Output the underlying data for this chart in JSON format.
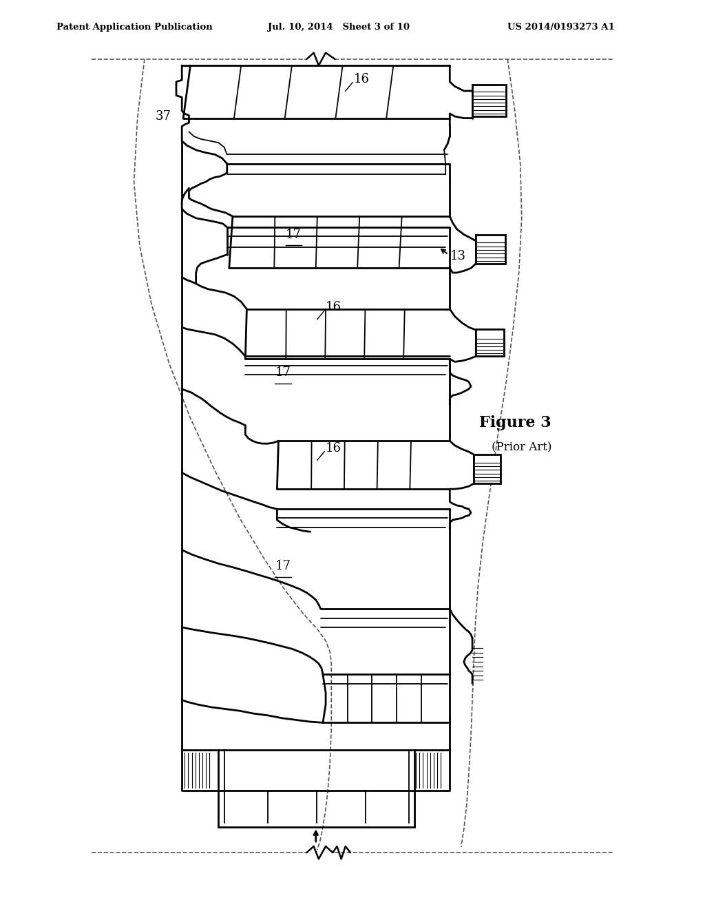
{
  "title_line1": "Patent Application Publication",
  "title_line2": "Jul. 10, 2014   Sheet 3 of 10",
  "title_line3": "US 2014/0193273 A1",
  "figure_label": "Figure 3",
  "figure_sublabel": "(Prior Art)",
  "bg_color": "#ffffff",
  "line_color": "#000000",
  "dashed_color": "#555555"
}
